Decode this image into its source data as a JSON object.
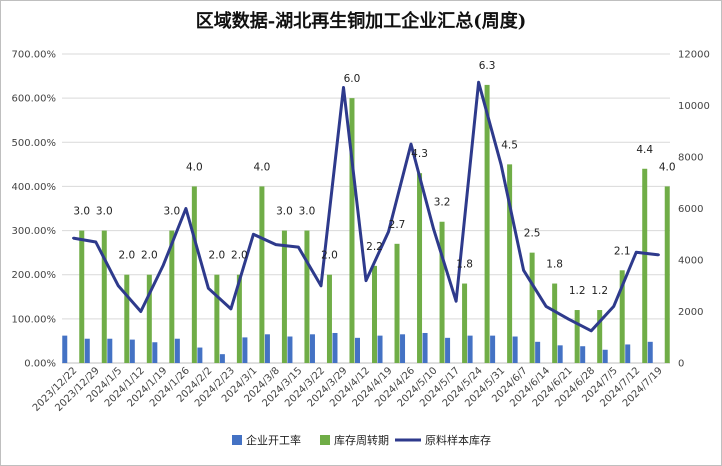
{
  "chart_data": {
    "type": "bar",
    "title": "区域数据-湖北再生铜加工企业汇总(周度)",
    "categories": [
      "2023/12/22",
      "2023/12/29",
      "2024/1/5",
      "2024/1/12",
      "2024/1/19",
      "2024/1/26",
      "2024/2/2",
      "2024/2/23",
      "2024/3/1",
      "2024/3/8",
      "2024/3/15",
      "2024/3/22",
      "2024/3/29",
      "2024/4/12",
      "2024/4/19",
      "2024/4/26",
      "2024/5/10",
      "2024/5/17",
      "2024/5/24",
      "2024/5/31",
      "2024/6/7",
      "2024/6/14",
      "2024/6/21",
      "2024/6/28",
      "2024/7/5",
      "2024/7/12",
      "2024/7/19"
    ],
    "series": [
      {
        "name": "企业开工率",
        "type": "bar",
        "axis": "left",
        "color": "#4472C4",
        "values": [
          62,
          55,
          55,
          53,
          47,
          55,
          35,
          20,
          58,
          65,
          60,
          65,
          68,
          57,
          62,
          65,
          68,
          57,
          62,
          62,
          60,
          48,
          40,
          38,
          30,
          42,
          48
        ]
      },
      {
        "name": "库存周转期",
        "type": "bar",
        "axis": "left",
        "color": "#70AD47",
        "values": [
          300,
          300,
          200,
          200,
          300,
          400,
          200,
          200,
          400,
          300,
          300,
          200,
          600,
          220,
          270,
          430,
          320,
          180,
          630,
          450,
          250,
          180,
          120,
          120,
          210,
          440,
          400
        ],
        "labels": [
          "3.0",
          "3.0",
          "2.0",
          "2.0",
          "3.0",
          "4.0",
          "2.0",
          "2.0",
          "4.0",
          "3.0",
          "3.0",
          "2.0",
          "6.0",
          "2.2",
          "2.7",
          "4.3",
          "3.2",
          "1.8",
          "6.3",
          "4.5",
          "2.5",
          "1.8",
          "1.2",
          "1.2",
          "2.1",
          "4.4",
          "4.0"
        ]
      },
      {
        "name": "原料样本库存",
        "type": "line",
        "axis": "right",
        "color": "#2E3A8C",
        "values": [
          4850,
          4700,
          3000,
          2000,
          3800,
          6000,
          2900,
          2100,
          5000,
          4600,
          4500,
          3000,
          10700,
          3200,
          5100,
          8500,
          5200,
          2400,
          10900,
          7700,
          3600,
          2200,
          1700,
          1250,
          2200,
          4300,
          4200
        ]
      }
    ],
    "y_left": {
      "min": 0,
      "max": 700,
      "ticks": [
        "0.00%",
        "100.00%",
        "200.00%",
        "300.00%",
        "400.00%",
        "500.00%",
        "600.00%",
        "700.00%"
      ]
    },
    "y_right": {
      "min": 0,
      "max": 12000,
      "ticks": [
        "0",
        "2000",
        "4000",
        "6000",
        "8000",
        "10000",
        "12000"
      ]
    },
    "grid": true,
    "legend": "bottom"
  }
}
